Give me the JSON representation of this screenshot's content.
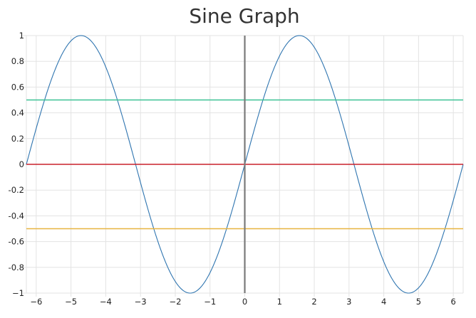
{
  "chart_data": {
    "type": "line",
    "title": "Sine Graph",
    "xlabel": "",
    "ylabel": "",
    "xlim": [
      -6.2832,
      6.2832
    ],
    "ylim": [
      -1,
      1
    ],
    "x_ticks": [
      -6,
      -5,
      -4,
      -3,
      -2,
      -1,
      0,
      1,
      2,
      3,
      4,
      5,
      6
    ],
    "x_tick_labels": [
      "−6",
      "−5",
      "−4",
      "−3",
      "−2",
      "−1",
      "0",
      "1",
      "2",
      "3",
      "4",
      "5",
      "6"
    ],
    "y_ticks": [
      1,
      0.8,
      0.6,
      0.4,
      0.2,
      0,
      -0.2,
      -0.4,
      -0.6,
      -0.8,
      -1
    ],
    "y_tick_labels": [
      "1",
      "0.8",
      "0.6",
      "0.4",
      "0.2",
      "0",
      "-0.2",
      "-0.4",
      "-0.6",
      "-0.8",
      "−1"
    ],
    "grid": true,
    "series": [
      {
        "kind": "function",
        "function": "sin(x)",
        "x_domain": [
          -6.2832,
          6.2832
        ],
        "color": "#2f75b0",
        "peaks": [
          [
            -4.712,
            1
          ],
          [
            1.571,
            1
          ]
        ],
        "troughs": [
          [
            -1.571,
            -1
          ],
          [
            4.712,
            -1
          ]
        ]
      },
      {
        "kind": "horizontal-line",
        "y": 0.5,
        "color": "#3cc195"
      },
      {
        "kind": "horizontal-line",
        "y": 0,
        "color": "#c8202b"
      },
      {
        "kind": "horizontal-line",
        "y": -0.5,
        "color": "#e7b440"
      },
      {
        "kind": "vertical-line",
        "x": 0,
        "color": "#7a7a7a"
      }
    ],
    "grid_color": "#e3e3e3"
  }
}
